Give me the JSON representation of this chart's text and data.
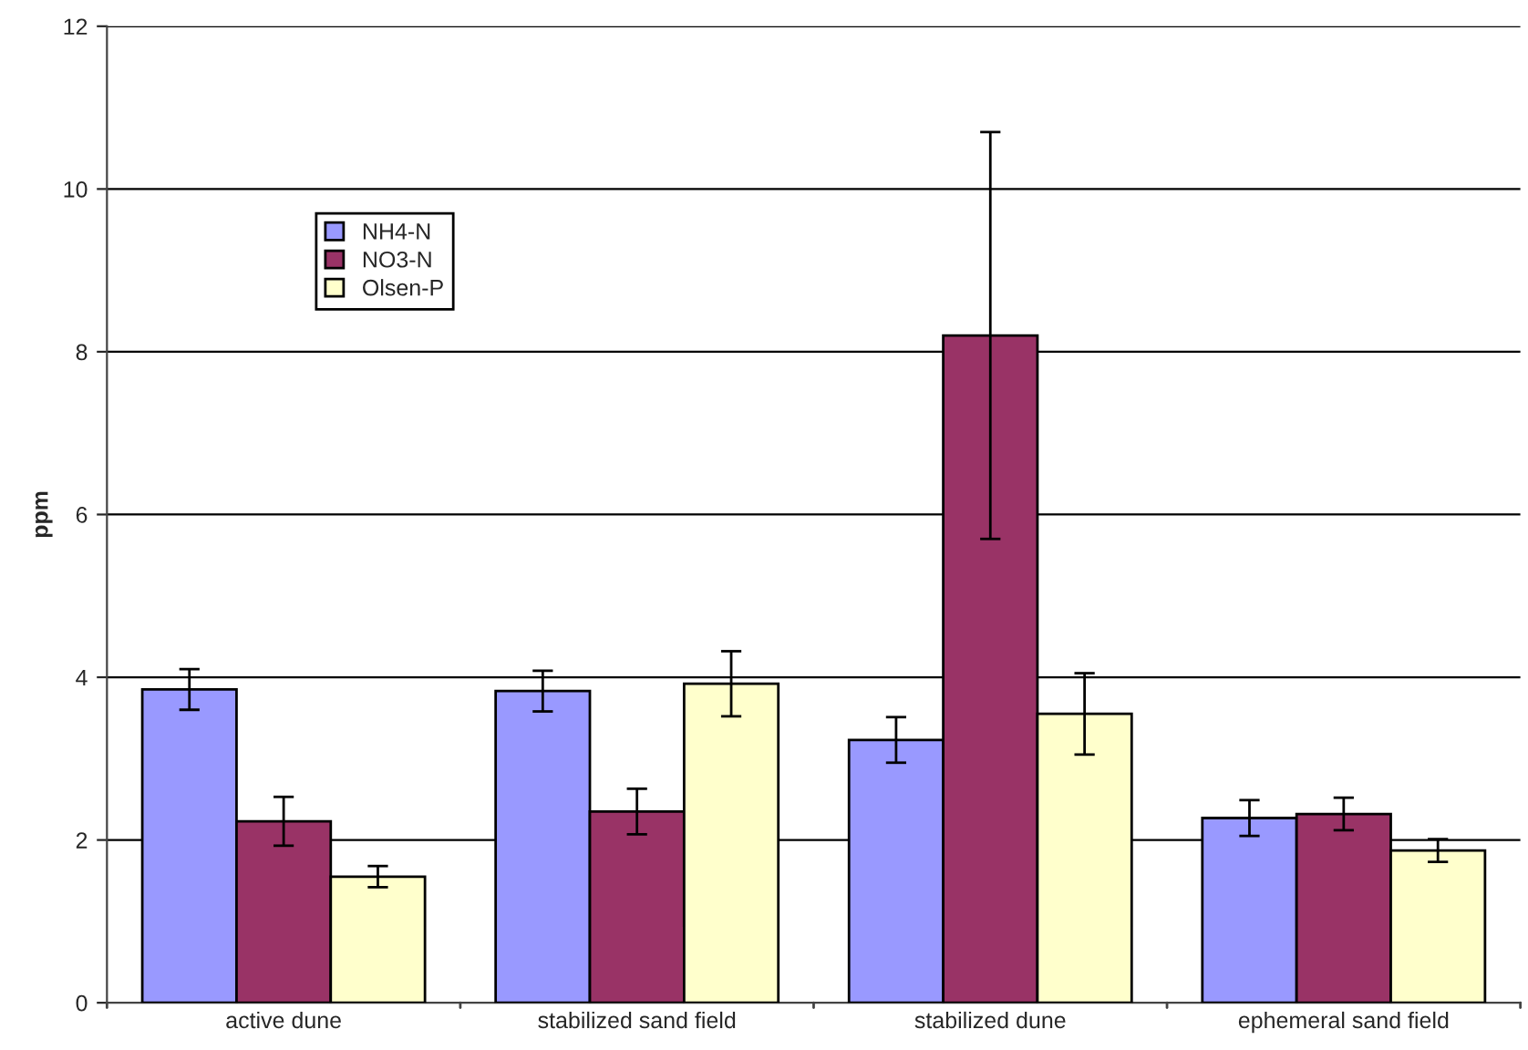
{
  "chart_data": {
    "type": "bar",
    "ylabel": "ppm",
    "categories": [
      "active dune",
      "stabilized sand field",
      "stabilized dune",
      "ephemeral sand field"
    ],
    "series": [
      {
        "name": "NH4-N",
        "color": "#9999ff",
        "values": [
          3.85,
          3.83,
          3.23,
          2.27
        ],
        "errors": [
          0.25,
          0.25,
          0.28,
          0.22
        ]
      },
      {
        "name": "NO3-N",
        "color": "#993366",
        "values": [
          2.23,
          2.35,
          8.2,
          2.32
        ],
        "errors": [
          0.3,
          0.28,
          2.5,
          0.2
        ]
      },
      {
        "name": "Olsen-P",
        "color": "#ffffcc",
        "values": [
          1.55,
          3.92,
          3.55,
          1.87
        ],
        "errors": [
          0.13,
          0.4,
          0.5,
          0.14
        ]
      }
    ],
    "ylim": [
      0,
      12
    ],
    "yticks": [
      0,
      2,
      4,
      6,
      8,
      10,
      12
    ],
    "grid": "y",
    "legend": "top left"
  }
}
